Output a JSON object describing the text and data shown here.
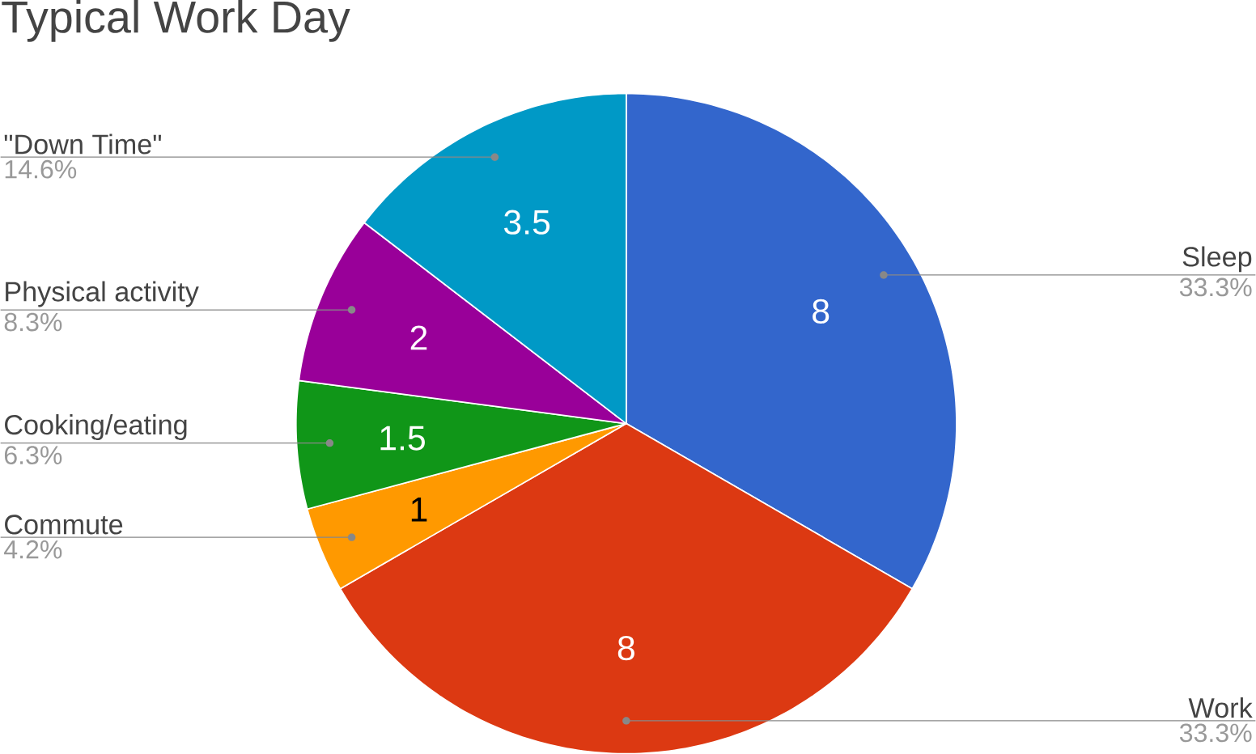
{
  "chart_data": {
    "type": "pie",
    "title": "Typical Work Day",
    "categories": [
      "Sleep",
      "Work",
      "Commute",
      "Cooking/eating",
      "Physical activity",
      "\"Down Time\""
    ],
    "values": [
      8,
      8,
      1,
      1.5,
      2,
      3.5
    ],
    "colors": [
      "#3366cc",
      "#dc3912",
      "#ff9900",
      "#109618",
      "#990099",
      "#0099c6"
    ],
    "value_labels": [
      "8",
      "8",
      "1",
      "1.5",
      "2",
      "3.5"
    ],
    "annotations": [
      "33.3%",
      "33.3%",
      "4.2%",
      "6.3%",
      "8.3%",
      "14.6%"
    ]
  }
}
